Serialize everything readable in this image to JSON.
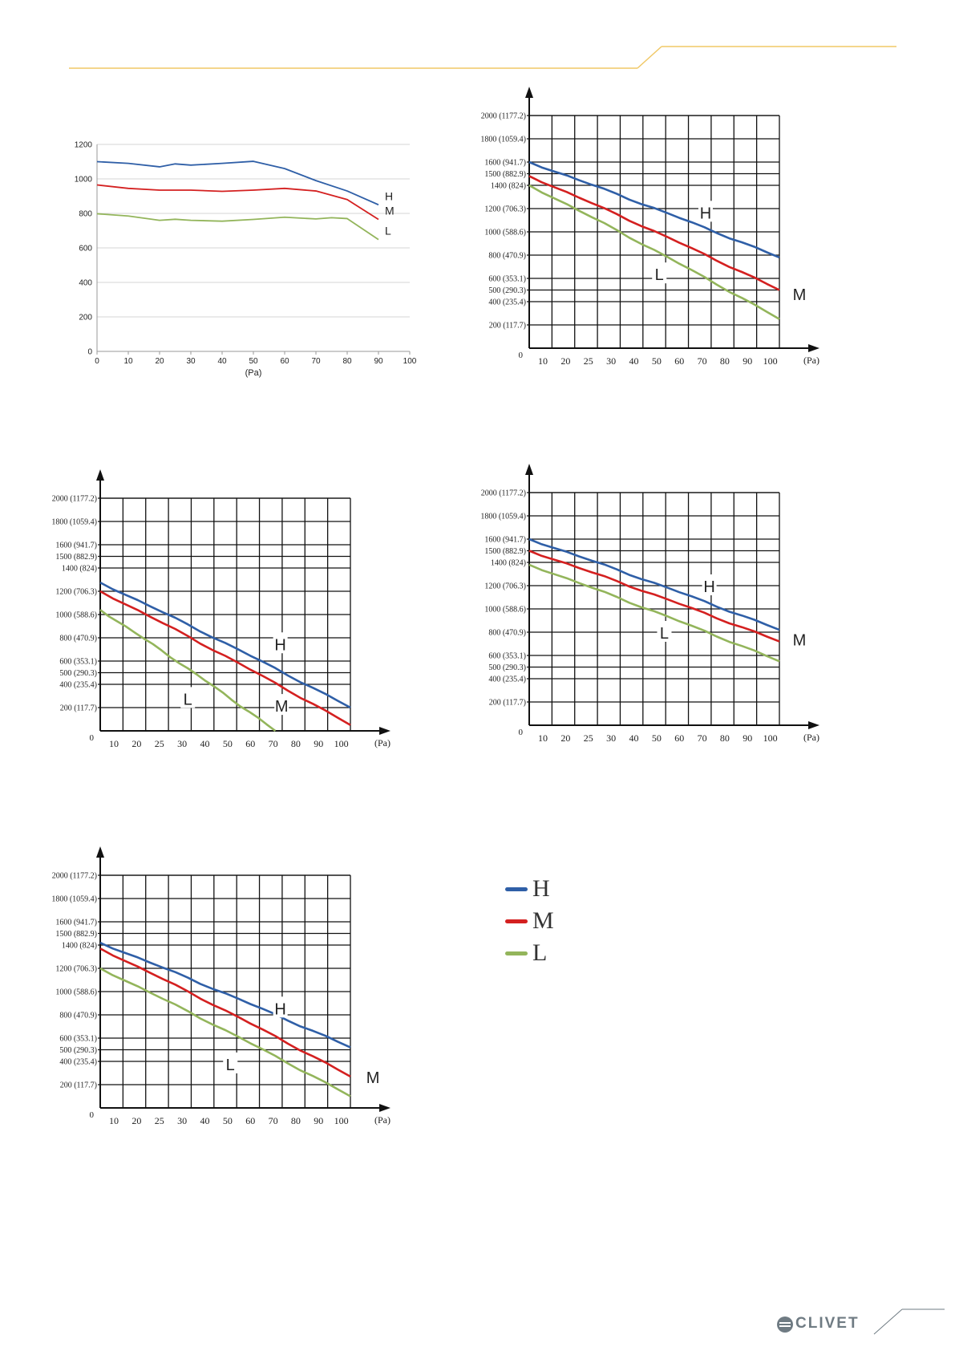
{
  "colors": {
    "H": "#2f5fa7",
    "M": "#d42020",
    "L": "#93b55b",
    "accent": "#f0c866",
    "grid": "#111111"
  },
  "brand": {
    "name": "CLIVET"
  },
  "legend": [
    {
      "key": "H",
      "label": "H"
    },
    {
      "key": "M",
      "label": "M"
    },
    {
      "key": "L",
      "label": "L"
    }
  ],
  "chart_data": [
    {
      "type": "line",
      "style": "excel",
      "xlabel": "(Pa)",
      "x_ticks": [
        0,
        10,
        20,
        30,
        40,
        50,
        60,
        70,
        80,
        90,
        100
      ],
      "y_ticks": [
        0,
        200,
        400,
        600,
        800,
        1000,
        1200
      ],
      "xlim": [
        0,
        100
      ],
      "ylim": [
        0,
        1200
      ],
      "grid": "horizontal",
      "series": [
        {
          "name": "H",
          "x": [
            0,
            10,
            20,
            25,
            30,
            40,
            50,
            60,
            70,
            80,
            90
          ],
          "y": [
            1100,
            1090,
            1070,
            1087,
            1080,
            1090,
            1102,
            1060,
            990,
            930,
            850
          ]
        },
        {
          "name": "M",
          "x": [
            0,
            10,
            20,
            30,
            40,
            50,
            60,
            70,
            80,
            90
          ],
          "y": [
            965,
            945,
            935,
            935,
            928,
            935,
            945,
            930,
            880,
            765
          ]
        },
        {
          "name": "L",
          "x": [
            0,
            10,
            20,
            25,
            30,
            40,
            50,
            60,
            70,
            75,
            80,
            90
          ],
          "y": [
            798,
            785,
            760,
            766,
            760,
            755,
            765,
            778,
            768,
            775,
            770,
            648
          ]
        }
      ]
    },
    {
      "type": "line",
      "style": "grid",
      "xlabel": "(Pa)",
      "x_ticks": [
        "10",
        "20",
        "25",
        "30",
        "40",
        "50",
        "60",
        "70",
        "80",
        "90",
        "100"
      ],
      "y_ticks": [
        {
          "v": 200,
          "label": "200 (117.7)"
        },
        {
          "v": 400,
          "label": "400 (235.4)"
        },
        {
          "v": 500,
          "label": "500 (290.3)"
        },
        {
          "v": 600,
          "label": "600 (353.1)"
        },
        {
          "v": 800,
          "label": "800 (470.9)"
        },
        {
          "v": 1000,
          "label": "1000 (588.6)"
        },
        {
          "v": 1200,
          "label": "1200 (706.3)"
        },
        {
          "v": 1400,
          "label": "1400 (824)"
        },
        {
          "v": 1500,
          "label": "1500 (882.9)"
        },
        {
          "v": 1600,
          "label": "1600 (941.7)"
        },
        {
          "v": 1800,
          "label": "1800 (1059.4)"
        },
        {
          "v": 2000,
          "label": "2000 (1177.2)"
        }
      ],
      "origin_label": "0",
      "series": [
        {
          "name": "H",
          "start": 1600,
          "end": 780
        },
        {
          "name": "M",
          "start": 1480,
          "end": 500
        },
        {
          "name": "L",
          "start": 1400,
          "end": 250
        }
      ],
      "annotations": [
        {
          "text": "H",
          "cat": 70.5,
          "y": 1170
        },
        {
          "text": "L",
          "cat": 52,
          "y": 640
        },
        {
          "text": "M",
          "cat": 108,
          "y": 470
        }
      ]
    },
    {
      "type": "line",
      "style": "grid",
      "xlabel": "(Pa)",
      "x_ticks": [
        "10",
        "20",
        "25",
        "30",
        "40",
        "50",
        "60",
        "70",
        "80",
        "90",
        "100"
      ],
      "y_ticks": [
        {
          "v": 200,
          "label": "200 (117.7)"
        },
        {
          "v": 400,
          "label": "400 (235.4)"
        },
        {
          "v": 500,
          "label": "500 (290.3)"
        },
        {
          "v": 600,
          "label": "600 (353.1)"
        },
        {
          "v": 800,
          "label": "800 (470.9)"
        },
        {
          "v": 1000,
          "label": "1000 (588.6)"
        },
        {
          "v": 1200,
          "label": "1200 (706.3)"
        },
        {
          "v": 1400,
          "label": "1400 (824)"
        },
        {
          "v": 1500,
          "label": "1500 (882.9)"
        },
        {
          "v": 1600,
          "label": "1600 (941.7)"
        },
        {
          "v": 1800,
          "label": "1800 (1059.4)"
        },
        {
          "v": 2000,
          "label": "2000 (1177.2)"
        }
      ],
      "origin_label": "0",
      "series": [
        {
          "name": "H",
          "start": 1275,
          "end": 200
        },
        {
          "name": "M",
          "start": 1200,
          "end": 50
        },
        {
          "name": "L",
          "start": 1040,
          "end": 0,
          "end_cat": 70
        }
      ],
      "annotations": [
        {
          "text": "H",
          "cat": 72,
          "y": 750
        },
        {
          "text": "L",
          "cat": 35,
          "y": 280
        },
        {
          "text": "M",
          "cat": 72.5,
          "y": 220
        }
      ]
    },
    {
      "type": "line",
      "style": "grid",
      "xlabel": "(Pa)",
      "x_ticks": [
        "10",
        "20",
        "25",
        "30",
        "40",
        "50",
        "60",
        "70",
        "80",
        "90",
        "100"
      ],
      "y_ticks": [
        {
          "v": 200,
          "label": "200 (117.7)"
        },
        {
          "v": 400,
          "label": "400 (235.4)"
        },
        {
          "v": 500,
          "label": "500 (290.3)"
        },
        {
          "v": 600,
          "label": "600 (353.1)"
        },
        {
          "v": 800,
          "label": "800 (470.9)"
        },
        {
          "v": 1000,
          "label": "1000 (588.6)"
        },
        {
          "v": 1200,
          "label": "1200 (706.3)"
        },
        {
          "v": 1400,
          "label": "1400 (824)"
        },
        {
          "v": 1500,
          "label": "1500 (882.9)"
        },
        {
          "v": 1600,
          "label": "1600 (941.7)"
        },
        {
          "v": 1800,
          "label": "1800 (1059.4)"
        },
        {
          "v": 2000,
          "label": "2000 (1177.2)"
        }
      ],
      "origin_label": "0",
      "series": [
        {
          "name": "H",
          "start": 1600,
          "end": 820
        },
        {
          "name": "M",
          "start": 1500,
          "end": 720
        },
        {
          "name": "L",
          "start": 1380,
          "end": 550
        }
      ],
      "annotations": [
        {
          "text": "H",
          "cat": 72,
          "y": 1200
        },
        {
          "text": "L",
          "cat": 54,
          "y": 800
        },
        {
          "text": "M",
          "cat": 108,
          "y": 740
        }
      ]
    },
    {
      "type": "line",
      "style": "grid",
      "xlabel": "(Pa)",
      "x_ticks": [
        "10",
        "20",
        "25",
        "30",
        "40",
        "50",
        "60",
        "70",
        "80",
        "90",
        "100"
      ],
      "y_ticks": [
        {
          "v": 200,
          "label": "200 (117.7)"
        },
        {
          "v": 400,
          "label": "400 (235.4)"
        },
        {
          "v": 500,
          "label": "500 (290.3)"
        },
        {
          "v": 600,
          "label": "600 (353.1)"
        },
        {
          "v": 800,
          "label": "800 (470.9)"
        },
        {
          "v": 1000,
          "label": "1000 (588.6)"
        },
        {
          "v": 1200,
          "label": "1200 (706.3)"
        },
        {
          "v": 1400,
          "label": "1400 (824)"
        },
        {
          "v": 1500,
          "label": "1500 (882.9)"
        },
        {
          "v": 1600,
          "label": "1600 (941.7)"
        },
        {
          "v": 1800,
          "label": "1800 (1059.4)"
        },
        {
          "v": 2000,
          "label": "2000 (1177.2)"
        }
      ],
      "origin_label": "0",
      "series": [
        {
          "name": "H",
          "start": 1420,
          "end": 520
        },
        {
          "name": "M",
          "start": 1370,
          "end": 270
        },
        {
          "name": "L",
          "start": 1200,
          "end": 100
        }
      ],
      "annotations": [
        {
          "text": "H",
          "cat": 72,
          "y": 860
        },
        {
          "text": "L",
          "cat": 52,
          "y": 380
        },
        {
          "text": "M",
          "cat": 109,
          "y": 270
        }
      ]
    }
  ]
}
